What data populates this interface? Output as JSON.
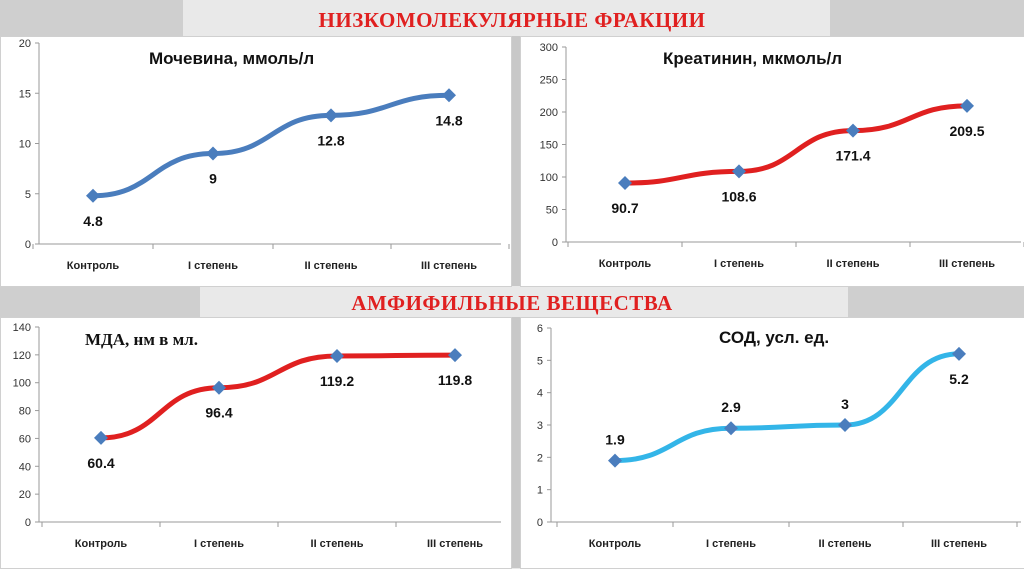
{
  "sections": {
    "top": "НИЗКОМОЛЕКУЛЯРНЫЕ ФРАКЦИИ",
    "bottom": "АМФИФИЛЬНЫЕ  ВЕЩЕСТВА"
  },
  "colors": {
    "blue": "#4a7dbd",
    "red": "#e02020",
    "cyan": "#33b5e8",
    "marker": "#4a7dbd"
  },
  "chart_data": [
    {
      "type": "line",
      "title": "Мочевина, ммоль/л",
      "categories": [
        "Контроль",
        "I степень",
        "II степень",
        "III степень"
      ],
      "values": [
        4.8,
        9,
        12.8,
        14.8
      ],
      "labels": [
        "4.8",
        "9",
        "12.8",
        "14.8"
      ],
      "ylim": [
        0,
        20
      ],
      "yticks": [
        0,
        5,
        10,
        15,
        20
      ],
      "color": "#4a7dbd",
      "label_pos": [
        "below",
        "below",
        "below",
        "below"
      ]
    },
    {
      "type": "line",
      "title": "Креатинин, мкмоль/л",
      "categories": [
        "Контроль",
        "I степень",
        "II степень",
        "III степень"
      ],
      "values": [
        90.7,
        108.6,
        171.4,
        209.5
      ],
      "labels": [
        "90.7",
        "108.6",
        "171.4",
        "209.5"
      ],
      "ylim": [
        0,
        300
      ],
      "yticks": [
        0,
        50,
        100,
        150,
        200,
        250,
        300
      ],
      "color": "#e02020",
      "label_pos": [
        "below",
        "below",
        "below",
        "below"
      ]
    },
    {
      "type": "line",
      "title": "МДА, нм в мл.",
      "categories": [
        "Контроль",
        "I степень",
        "II степень",
        "III степень"
      ],
      "values": [
        60.4,
        96.4,
        119.2,
        119.8
      ],
      "labels": [
        "60.4",
        "96.4",
        "119.2",
        "119.8"
      ],
      "ylim": [
        0,
        140
      ],
      "yticks": [
        0,
        20,
        40,
        60,
        80,
        100,
        120,
        140
      ],
      "color": "#e02020",
      "label_pos": [
        "below",
        "below",
        "below",
        "below"
      ]
    },
    {
      "type": "line",
      "title": "СОД, усл. ед.",
      "categories": [
        "Контроль",
        "I степень",
        "II степень",
        "III степень"
      ],
      "values": [
        1.9,
        2.9,
        3,
        5.2
      ],
      "labels": [
        "1.9",
        "2.9",
        "3",
        "5.2"
      ],
      "ylim": [
        0,
        6
      ],
      "yticks": [
        0,
        1,
        2,
        3,
        4,
        5,
        6
      ],
      "color": "#33b5e8",
      "label_pos": [
        "above",
        "above",
        "above",
        "below"
      ]
    }
  ]
}
